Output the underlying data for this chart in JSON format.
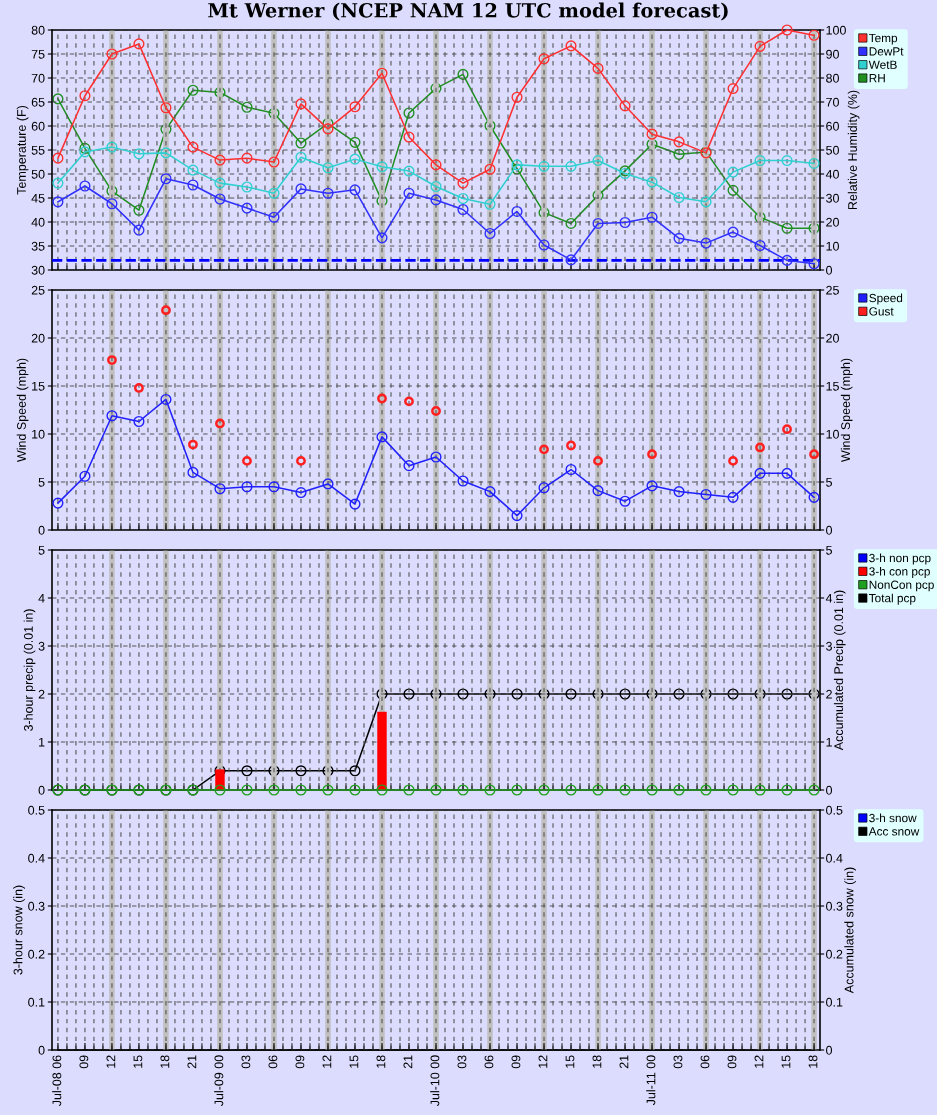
{
  "chart_data": [
    {
      "type": "line",
      "title": "Mt Werner (NCEP NAM 12 UTC model forecast)",
      "ylabel": "Temperature (F)",
      "y2label": "Relative Humidity (%)",
      "categories": [
        null,
        null,
        null,
        null,
        null,
        null,
        null,
        null,
        null,
        null,
        null,
        null,
        null,
        null,
        null,
        null,
        null,
        null,
        null,
        null,
        null,
        null,
        null,
        null,
        null,
        null,
        null,
        null,
        null
      ],
      "series": [
        {
          "name": "Temp",
          "color": "#ff3030",
          "values": [
            53.3,
            66.3,
            75,
            77.1,
            63.8,
            55.6,
            52.9,
            53.3,
            52.5,
            64.6,
            59.4,
            64,
            71,
            57.7,
            51.9,
            48.1,
            51,
            66,
            74,
            76.7,
            72,
            64.2,
            58.3,
            56.7,
            54.4,
            67.8,
            76.6,
            80,
            78.9
          ]
        },
        {
          "name": "DewPt",
          "color": "#3030ff",
          "values": [
            44.2,
            47.5,
            43.8,
            38.3,
            49,
            47.7,
            44.8,
            42.9,
            41,
            46.9,
            46,
            46.7,
            36.7,
            46,
            44.6,
            42.6,
            37.6,
            42.2,
            35.2,
            32.1,
            39.7,
            39.9,
            41,
            36.6,
            35.6,
            37.9,
            35.1,
            32,
            31.3
          ]
        },
        {
          "name": "WetB",
          "color": "#30d0d0",
          "values": [
            48.1,
            54.6,
            55.6,
            54.2,
            54.4,
            50.8,
            48.1,
            47.3,
            46,
            53.5,
            51.3,
            53.1,
            51.5,
            50.6,
            47.4,
            44.9,
            43.7,
            51.9,
            51.6,
            51.6,
            52.8,
            50.1,
            48.3,
            45.1,
            44.2,
            50.4,
            52.8,
            52.8,
            52.2
          ]
        },
        {
          "name": "RH",
          "color": "#209020",
          "axis": "y2",
          "values": [
            71.3,
            50.7,
            32.9,
            24.9,
            58.6,
            74.9,
            74,
            67.8,
            65.3,
            52.9,
            61.1,
            53.2,
            28.8,
            65.4,
            75.7,
            81.5,
            60.1,
            42.1,
            23.9,
            19.4,
            31.1,
            41.3,
            52.4,
            48.2,
            49.2,
            33.2,
            22,
            17.4,
            17.4
          ]
        }
      ],
      "ylim": [
        30,
        80
      ],
      "yticks": [
        30,
        35,
        40,
        45,
        50,
        55,
        60,
        65,
        70,
        75,
        80
      ],
      "y2lim": [
        0,
        100
      ],
      "y2ticks": [
        0,
        10,
        20,
        30,
        40,
        50,
        60,
        70,
        80,
        90,
        100
      ],
      "ref_lines": [
        {
          "axis": "y",
          "value": 32,
          "color": "#0000ff",
          "line_style": "dashed"
        }
      ],
      "marker": "circle",
      "grid": true,
      "legend": "right"
    },
    {
      "type": "line",
      "ylabel": "Wind Speed (mph)",
      "y2label": "Wind Speed (mph)",
      "categories": [
        null,
        null,
        null,
        null,
        null,
        null,
        null,
        null,
        null,
        null,
        null,
        null,
        null,
        null,
        null,
        null,
        null,
        null,
        null,
        null,
        null,
        null,
        null,
        null,
        null,
        null,
        null,
        null,
        null
      ],
      "series": [
        {
          "name": "Speed",
          "color": "#2020ff",
          "values": [
            2.8,
            5.6,
            11.9,
            11.3,
            13.6,
            6,
            4.3,
            4.5,
            4.5,
            3.9,
            4.8,
            2.7,
            9.7,
            6.7,
            7.6,
            5.1,
            4,
            1.5,
            4.4,
            6.3,
            4.1,
            3,
            4.6,
            4,
            3.7,
            3.4,
            5.9,
            5.9,
            3.4
          ]
        },
        {
          "name": "Gust",
          "color": "#ff2020",
          "type": "scatter",
          "values": [
            null,
            null,
            17.7,
            14.8,
            22.9,
            8.9,
            11.1,
            7.2,
            null,
            7.2,
            null,
            null,
            13.7,
            13.4,
            12.4,
            null,
            null,
            null,
            8.4,
            8.8,
            7.2,
            null,
            7.9,
            null,
            null,
            7.2,
            8.6,
            10.5,
            7.9
          ]
        }
      ],
      "ylim": [
        0,
        25
      ],
      "yticks": [
        0,
        5,
        10,
        15,
        20,
        25
      ],
      "y2lim": [
        0,
        25
      ],
      "y2ticks": [
        0,
        5,
        10,
        15,
        20,
        25
      ],
      "marker": "circle",
      "grid": true,
      "legend": "right"
    },
    {
      "type": "bar",
      "ylabel": "3-hour precip (0.01 in)",
      "y2label": "Accumulated Precip (0.01 in)",
      "categories": [
        null,
        null,
        null,
        null,
        null,
        null,
        null,
        null,
        null,
        null,
        null,
        null,
        null,
        null,
        null,
        null,
        null,
        null,
        null,
        null,
        null,
        null,
        null,
        null,
        null,
        null,
        null,
        null,
        null
      ],
      "series": [
        {
          "name": "3-h non pcp",
          "color": "#0000ff",
          "values": [
            0,
            0,
            0,
            0,
            0,
            0,
            0,
            0,
            0,
            0,
            0,
            0,
            0,
            0,
            0,
            0,
            0,
            0,
            0,
            0,
            0,
            0,
            0,
            0,
            0,
            0,
            0,
            0,
            0
          ]
        },
        {
          "name": "3-h con pcp",
          "color": "#ff0000",
          "values": [
            0,
            0,
            0,
            0,
            0,
            0,
            0.43,
            0,
            0,
            0,
            0,
            0,
            1.63,
            0,
            0,
            0,
            0,
            0,
            0,
            0,
            0,
            0,
            0,
            0,
            0,
            0,
            0,
            0,
            0
          ]
        },
        {
          "name": "NonCon pcp",
          "color": "#20a020",
          "type": "line",
          "values": [
            0,
            0,
            0,
            0,
            0,
            0,
            0,
            0,
            0,
            0,
            0,
            0,
            0,
            0,
            0,
            0,
            0,
            0,
            0,
            0,
            0,
            0,
            0,
            0,
            0,
            0,
            0,
            0,
            0
          ]
        },
        {
          "name": "Total pcp",
          "color": "#000000",
          "type": "line",
          "axis": "y2",
          "values": [
            0,
            0,
            0,
            0,
            0,
            0,
            0.4,
            0.4,
            0.4,
            0.4,
            0.4,
            0.4,
            2,
            2,
            2,
            2,
            2,
            2,
            2,
            2,
            2,
            2,
            2,
            2,
            2,
            2,
            2,
            2,
            2
          ]
        }
      ],
      "ylim": [
        0,
        5
      ],
      "yticks": [
        0,
        1,
        2,
        3,
        4,
        5
      ],
      "y2lim": [
        0,
        5
      ],
      "y2ticks": [
        0,
        1,
        2,
        3,
        4,
        5
      ],
      "marker": "circle",
      "grid": true,
      "legend": "right"
    },
    {
      "type": "bar",
      "ylabel": "3-hour snow (in)",
      "y2label": "Accumulated snow (in)",
      "categories": [
        "Jul-08 06",
        "09",
        "12",
        "15",
        "18",
        "21",
        "Jul-09 00",
        "03",
        "06",
        "09",
        "12",
        "15",
        "18",
        "21",
        "Jul-10 00",
        "03",
        "06",
        "09",
        "12",
        "15",
        "18",
        "21",
        "Jul-11 00",
        "03",
        "06",
        "09",
        "12",
        "15",
        "18"
      ],
      "series": [
        {
          "name": "3-h snow",
          "color": "#0000ff",
          "values": [
            0,
            0,
            0,
            0,
            0,
            0,
            0,
            0,
            0,
            0,
            0,
            0,
            0,
            0,
            0,
            0,
            0,
            0,
            0,
            0,
            0,
            0,
            0,
            0,
            0,
            0,
            0,
            0,
            0
          ]
        },
        {
          "name": "Acc snow",
          "color": "#000000",
          "type": "line",
          "axis": "y2",
          "values": [
            0,
            0,
            0,
            0,
            0,
            0,
            0,
            0,
            0,
            0,
            0,
            0,
            0,
            0,
            0,
            0,
            0,
            0,
            0,
            0,
            0,
            0,
            0,
            0,
            0,
            0,
            0,
            0,
            0
          ]
        }
      ],
      "ylim": [
        0,
        0.5
      ],
      "yticks": [
        0,
        0.1,
        0.2,
        0.3,
        0.4,
        0.5
      ],
      "y2lim": [
        0,
        0.5
      ],
      "y2ticks": [
        0,
        0.1,
        0.2,
        0.3,
        0.4,
        0.5
      ],
      "grid": true,
      "legend": "right"
    }
  ]
}
